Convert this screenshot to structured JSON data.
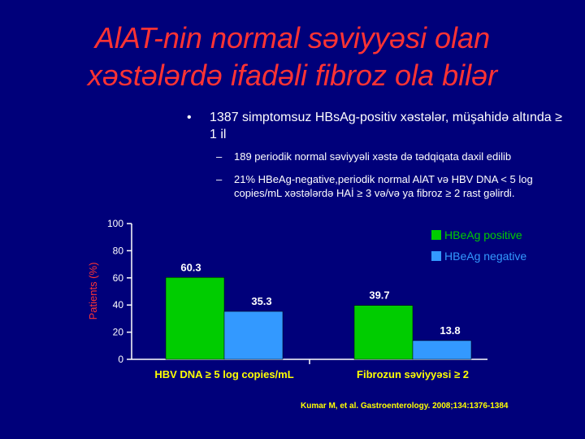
{
  "title": {
    "line1": "AlAT-nin normal səviyyəsi olan",
    "line2": "xəstələrdə ifadəli fibroz ola bilər"
  },
  "bullet": {
    "marker": "•",
    "text": "1387 simptomsuz HBsAg-positiv xəstələr, müşahidə altında ≥ 1 il"
  },
  "sub_bullets": [
    {
      "marker": "–",
      "text": "189 periodik normal səviyyəli xəstə də tədqiqata daxil edilib"
    },
    {
      "marker": "–",
      "text": "21% HBeAg-negative,periodik normal AlAT və  HBV DNA < 5 log copies/mL xəstələrdə HAİ ≥ 3 və/və ya fibroz ≥ 2 rast gəlirdi."
    }
  ],
  "chart_data": {
    "type": "bar",
    "categories": [
      "HBV DNA ≥ 5 log copies/mL",
      "Fibrozun səviyyəsi ≥ 2"
    ],
    "series": [
      {
        "name": "HBeAg positive",
        "values": [
          60.3,
          39.7
        ],
        "color": "#00cc00"
      },
      {
        "name": "HBeAg negative",
        "values": [
          35.3,
          13.8
        ],
        "color": "#3399ff"
      }
    ],
    "value_labels": [
      [
        "60.3",
        "39.7"
      ],
      [
        "35.3",
        "13.8"
      ]
    ],
    "ylabel": "Patients (%)",
    "ylim": [
      0,
      100
    ],
    "yticks": [
      0,
      20,
      40,
      60,
      80,
      100
    ],
    "legend_position": "top-right",
    "grid": false
  },
  "colors": {
    "background": "#00007a",
    "title": "#ff3333",
    "category_label": "#ffff00",
    "value_label": "#ffffff",
    "citation": "#ffff00"
  },
  "citation": "Kumar M, et al. Gastroenterology. 2008;134:1376-1384"
}
